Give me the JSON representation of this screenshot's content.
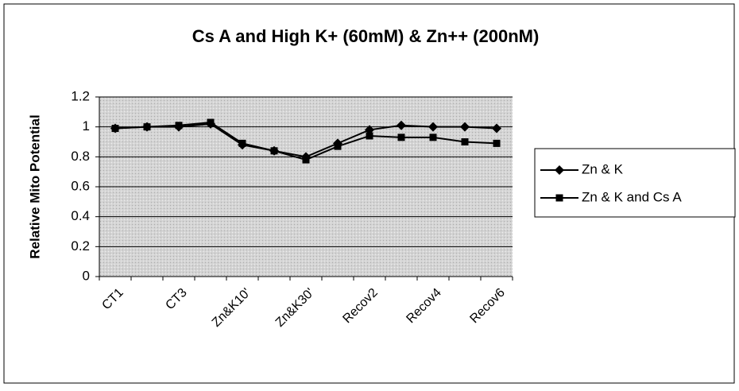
{
  "chart_data": {
    "type": "line",
    "title": "Cs A and High K+ (60mM) & Zn++ (200nM)",
    "y_label": "Relative Mito Potential",
    "categories": [
      "CT1",
      null,
      "CT3",
      null,
      "Zn&K10'",
      null,
      "Zn&K30'",
      null,
      "Recov2",
      null,
      "Recov4",
      null,
      "Recov6"
    ],
    "series": [
      {
        "name": "Zn & K",
        "color": "#000000",
        "marker": "diamond",
        "values": [
          0.99,
          1.0,
          1.0,
          1.02,
          0.88,
          0.84,
          0.8,
          0.89,
          0.98,
          1.01,
          1.0,
          1.0,
          0.99
        ]
      },
      {
        "name": "Zn & K and Cs A",
        "color": "#000000",
        "marker": "square",
        "values": [
          0.99,
          1.0,
          1.01,
          1.03,
          0.89,
          0.84,
          0.78,
          0.87,
          0.94,
          0.93,
          0.93,
          0.9,
          0.89
        ]
      }
    ],
    "ylim": [
      0,
      1.2
    ],
    "yticks": [
      0,
      0.2,
      0.4,
      0.6,
      0.8,
      1,
      1.2
    ],
    "grid": true,
    "legend": "right"
  }
}
